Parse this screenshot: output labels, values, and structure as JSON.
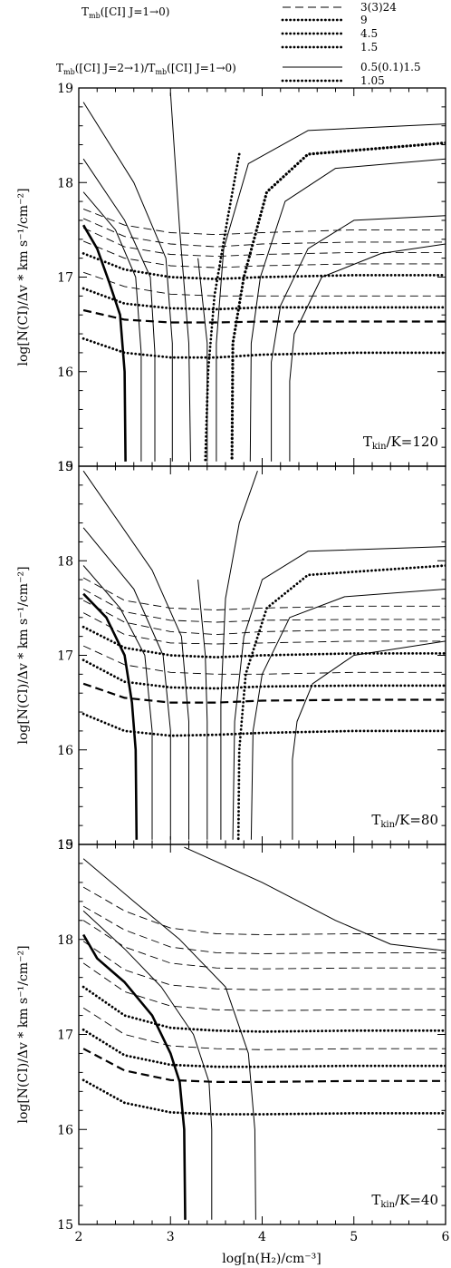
{
  "legend": {
    "tmb_label": "T",
    "tmb_sub": "mb",
    "tmb_rest": "([CI] J=1→0)",
    "ratio_label_a": "T",
    "ratio_sub_a": "mb",
    "ratio_rest_a": "([CI] J=2→1)/T",
    "ratio_sub_b": "mb",
    "ratio_rest_b": "([CI] J=1→0)",
    "entries": [
      {
        "label": "3(3)24",
        "style": "dashed"
      },
      {
        "label": "9",
        "style": "dotted"
      },
      {
        "label": "4.5",
        "style": "dotted"
      },
      {
        "label": "1.5",
        "style": "dotted"
      },
      {
        "label": "0.5(0.1)1.5",
        "style": "solid"
      },
      {
        "label": "1.05",
        "style": "dotted"
      }
    ]
  },
  "axes": {
    "ylabel": "log[N(CI)/Δv * km s⁻¹/cm⁻²]",
    "xlabel": "log[n(H₂)/cm⁻³]",
    "xticks": [
      "2",
      "3",
      "4",
      "5",
      "6"
    ],
    "yticks": [
      "15",
      "16",
      "17",
      "18",
      "19"
    ]
  },
  "chart_data": [
    {
      "type": "line",
      "panel_label": "T_kin/K=120",
      "label_main": "T",
      "label_sub": "kin",
      "label_rest": "/K=120",
      "xlim": [
        2,
        6
      ],
      "ylim": [
        15,
        19
      ],
      "tmb_levels": [
        {
          "style": "dotted",
          "y": [
            16.35,
            16.2,
            16.15,
            16.15,
            16.18,
            16.2,
            16.2
          ]
        },
        {
          "style": "dashed-bold",
          "y": [
            16.65,
            16.55,
            16.52,
            16.52,
            16.53,
            16.53,
            16.53
          ]
        },
        {
          "style": "dotted",
          "y": [
            16.88,
            16.72,
            16.67,
            16.66,
            16.68,
            16.68,
            16.68
          ]
        },
        {
          "style": "dashed",
          "y": [
            17.05,
            16.9,
            16.82,
            16.8,
            16.8,
            16.8,
            16.8
          ]
        },
        {
          "style": "dotted",
          "y": [
            17.25,
            17.08,
            17.0,
            16.98,
            17.0,
            17.02,
            17.02
          ]
        },
        {
          "style": "dashed",
          "y": [
            17.38,
            17.2,
            17.12,
            17.1,
            17.12,
            17.14,
            17.14
          ]
        },
        {
          "style": "dashed",
          "y": [
            17.52,
            17.32,
            17.24,
            17.22,
            17.24,
            17.26,
            17.26
          ]
        },
        {
          "style": "dashed",
          "y": [
            17.62,
            17.43,
            17.35,
            17.32,
            17.35,
            17.37,
            17.37
          ]
        },
        {
          "style": "dashed",
          "y": [
            17.72,
            17.55,
            17.47,
            17.45,
            17.47,
            17.5,
            17.5
          ]
        }
      ],
      "tmb_x": [
        2.05,
        2.5,
        3.0,
        3.5,
        4.0,
        5.0,
        6.0
      ],
      "ratio_curves": [
        {
          "style": "solid-bold",
          "x": [
            2.05,
            2.2,
            2.33,
            2.45,
            2.5,
            2.51
          ],
          "y": [
            17.55,
            17.3,
            16.95,
            16.6,
            16.0,
            15.05
          ]
        },
        {
          "style": "solid",
          "x": [
            2.05,
            2.4,
            2.62,
            2.68,
            2.68
          ],
          "y": [
            17.9,
            17.5,
            17.0,
            16.2,
            15.05
          ]
        },
        {
          "style": "solid",
          "x": [
            2.05,
            2.5,
            2.78,
            2.83,
            2.83
          ],
          "y": [
            18.25,
            17.6,
            17.0,
            16.2,
            15.05
          ]
        },
        {
          "style": "solid",
          "x": [
            2.05,
            2.6,
            2.95,
            3.02,
            3.02
          ],
          "y": [
            18.85,
            18.0,
            17.2,
            16.3,
            15.05
          ]
        },
        {
          "style": "solid",
          "x": [
            3.0,
            3.1,
            3.2,
            3.22
          ],
          "y": [
            18.95,
            17.5,
            16.3,
            15.05
          ]
        },
        {
          "style": "solid",
          "x": [
            3.3,
            3.4,
            3.4
          ],
          "y": [
            17.2,
            16.3,
            15.05
          ]
        },
        {
          "style": "dotted",
          "x": [
            3.75,
            3.62,
            3.48,
            3.41,
            3.38
          ],
          "y": [
            18.3,
            17.6,
            16.8,
            16.0,
            15.05
          ]
        },
        {
          "style": "solid",
          "x": [
            6.0,
            4.5,
            3.85,
            3.58,
            3.5,
            3.5
          ],
          "y": [
            18.62,
            18.55,
            18.2,
            17.3,
            16.3,
            15.05
          ]
        },
        {
          "style": "dotted-bold",
          "x": [
            6.0,
            4.5,
            4.05,
            3.8,
            3.68,
            3.67
          ],
          "y": [
            18.42,
            18.3,
            17.9,
            17.0,
            16.3,
            15.05
          ]
        },
        {
          "style": "solid",
          "x": [
            6.0,
            4.8,
            4.25,
            3.98,
            3.88,
            3.87
          ],
          "y": [
            18.25,
            18.15,
            17.8,
            17.0,
            16.3,
            15.05
          ]
        },
        {
          "style": "solid",
          "x": [
            6.0,
            5.0,
            4.5,
            4.2,
            4.1,
            4.1
          ],
          "y": [
            17.65,
            17.6,
            17.3,
            16.7,
            16.1,
            15.05
          ]
        },
        {
          "style": "solid",
          "x": [
            6.0,
            5.3,
            4.65,
            4.35,
            4.3,
            4.3
          ],
          "y": [
            17.35,
            17.25,
            17.0,
            16.4,
            15.9,
            15.05
          ]
        }
      ]
    },
    {
      "type": "line",
      "panel_label": "T_kin/K=80",
      "label_main": "T",
      "label_sub": "kin",
      "label_rest": "/K=80",
      "xlim": [
        2,
        6
      ],
      "ylim": [
        15,
        19
      ],
      "tmb_levels": [
        {
          "style": "dotted",
          "y": [
            16.38,
            16.2,
            16.15,
            16.16,
            16.18,
            16.2,
            16.2
          ]
        },
        {
          "style": "dashed-bold",
          "y": [
            16.7,
            16.55,
            16.5,
            16.5,
            16.52,
            16.53,
            16.53
          ]
        },
        {
          "style": "dotted",
          "y": [
            16.95,
            16.72,
            16.66,
            16.65,
            16.67,
            16.68,
            16.68
          ]
        },
        {
          "style": "dashed",
          "y": [
            17.1,
            16.9,
            16.82,
            16.8,
            16.8,
            16.82,
            16.82
          ]
        },
        {
          "style": "dotted",
          "y": [
            17.3,
            17.08,
            17.0,
            16.98,
            17.0,
            17.02,
            17.02
          ]
        },
        {
          "style": "dashed",
          "y": [
            17.45,
            17.22,
            17.13,
            17.12,
            17.13,
            17.15,
            17.15
          ]
        },
        {
          "style": "dashed",
          "y": [
            17.58,
            17.35,
            17.25,
            17.22,
            17.25,
            17.27,
            17.27
          ]
        },
        {
          "style": "dashed",
          "y": [
            17.7,
            17.46,
            17.37,
            17.35,
            17.37,
            17.38,
            17.38
          ]
        },
        {
          "style": "dashed",
          "y": [
            17.82,
            17.58,
            17.5,
            17.48,
            17.5,
            17.52,
            17.52
          ]
        }
      ],
      "tmb_x": [
        2.05,
        2.5,
        3.0,
        3.5,
        4.0,
        5.0,
        6.0
      ],
      "ratio_curves": [
        {
          "style": "solid-bold",
          "x": [
            2.05,
            2.3,
            2.5,
            2.58,
            2.62,
            2.63
          ],
          "y": [
            17.65,
            17.4,
            17.0,
            16.5,
            16.0,
            15.05
          ]
        },
        {
          "style": "solid",
          "x": [
            2.05,
            2.45,
            2.72,
            2.8,
            2.8
          ],
          "y": [
            17.95,
            17.5,
            17.0,
            16.2,
            15.05
          ]
        },
        {
          "style": "solid",
          "x": [
            2.05,
            2.6,
            2.92,
            3.0,
            3.0
          ],
          "y": [
            18.35,
            17.7,
            17.0,
            16.2,
            15.05
          ]
        },
        {
          "style": "solid",
          "x": [
            2.05,
            2.8,
            3.12,
            3.2,
            3.2
          ],
          "y": [
            18.95,
            17.9,
            17.2,
            16.3,
            15.05
          ]
        },
        {
          "style": "solid",
          "x": [
            3.3,
            3.38,
            3.4,
            3.4
          ],
          "y": [
            17.8,
            17.0,
            16.3,
            15.05
          ]
        },
        {
          "style": "solid",
          "x": [
            3.95,
            3.75,
            3.6,
            3.55,
            3.55
          ],
          "y": [
            18.95,
            18.4,
            17.6,
            16.5,
            15.05
          ]
        },
        {
          "style": "dotted",
          "x": [
            6.0,
            4.5,
            4.05,
            3.82,
            3.75,
            3.74
          ],
          "y": [
            17.95,
            17.85,
            17.5,
            16.8,
            16.0,
            15.05
          ]
        },
        {
          "style": "solid",
          "x": [
            6.0,
            4.5,
            4.0,
            3.8,
            3.7,
            3.68
          ],
          "y": [
            18.15,
            18.1,
            17.8,
            17.2,
            16.3,
            15.05
          ]
        },
        {
          "style": "solid",
          "x": [
            6.0,
            4.9,
            4.3,
            4.0,
            3.9,
            3.88
          ],
          "y": [
            17.7,
            17.62,
            17.4,
            16.8,
            16.2,
            15.05
          ]
        },
        {
          "style": "solid",
          "x": [
            6.0,
            5.0,
            4.55,
            4.38,
            4.33,
            4.33
          ],
          "y": [
            17.15,
            17.0,
            16.7,
            16.3,
            15.9,
            15.05
          ]
        }
      ]
    },
    {
      "type": "line",
      "panel_label": "T_kin/K=40",
      "label_main": "T",
      "label_sub": "kin",
      "label_rest": "/K=40",
      "xlim": [
        2,
        6
      ],
      "ylim": [
        15,
        19
      ],
      "tmb_levels": [
        {
          "style": "dotted",
          "y": [
            16.52,
            16.28,
            16.18,
            16.16,
            16.16,
            16.17,
            16.17
          ]
        },
        {
          "style": "dashed-bold",
          "y": [
            16.85,
            16.62,
            16.52,
            16.5,
            16.5,
            16.51,
            16.51
          ]
        },
        {
          "style": "dotted",
          "y": [
            17.05,
            16.78,
            16.68,
            16.66,
            16.66,
            16.67,
            16.67
          ]
        },
        {
          "style": "dashed",
          "y": [
            17.28,
            17.0,
            16.88,
            16.85,
            16.84,
            16.85,
            16.85
          ]
        },
        {
          "style": "dotted",
          "y": [
            17.5,
            17.2,
            17.07,
            17.04,
            17.03,
            17.04,
            17.04
          ]
        },
        {
          "style": "dashed",
          "y": [
            17.75,
            17.45,
            17.3,
            17.26,
            17.25,
            17.26,
            17.26
          ]
        },
        {
          "style": "dashed",
          "y": [
            17.98,
            17.68,
            17.52,
            17.48,
            17.47,
            17.48,
            17.48
          ]
        },
        {
          "style": "dashed",
          "y": [
            18.2,
            17.92,
            17.75,
            17.7,
            17.69,
            17.7,
            17.7
          ]
        },
        {
          "style": "dashed",
          "y": [
            18.35,
            18.1,
            17.92,
            17.86,
            17.85,
            17.86,
            17.86
          ]
        },
        {
          "style": "dashed",
          "y": [
            18.55,
            18.3,
            18.12,
            18.06,
            18.05,
            18.06,
            18.06
          ]
        }
      ],
      "tmb_x": [
        2.05,
        2.5,
        3.0,
        3.5,
        4.0,
        5.0,
        6.0
      ],
      "ratio_curves": [
        {
          "style": "solid-bold",
          "x": [
            2.05,
            2.2,
            2.5,
            2.8,
            3.0,
            3.1,
            3.15,
            3.16
          ],
          "y": [
            18.05,
            17.8,
            17.55,
            17.2,
            16.8,
            16.5,
            16.0,
            15.05
          ]
        },
        {
          "style": "solid",
          "x": [
            2.05,
            2.5,
            2.9,
            3.25,
            3.42,
            3.45,
            3.45
          ],
          "y": [
            18.3,
            17.9,
            17.5,
            17.0,
            16.5,
            16.0,
            15.05
          ]
        },
        {
          "style": "solid",
          "x": [
            2.05,
            2.6,
            3.1,
            3.6,
            3.85,
            3.92,
            3.93
          ],
          "y": [
            18.85,
            18.4,
            18.0,
            17.5,
            16.8,
            16.0,
            15.05
          ]
        },
        {
          "style": "solid",
          "x": [
            3.15,
            4.0,
            4.8,
            5.4,
            6.0
          ],
          "y": [
            18.97,
            18.6,
            18.2,
            17.95,
            17.88
          ]
        }
      ]
    }
  ]
}
